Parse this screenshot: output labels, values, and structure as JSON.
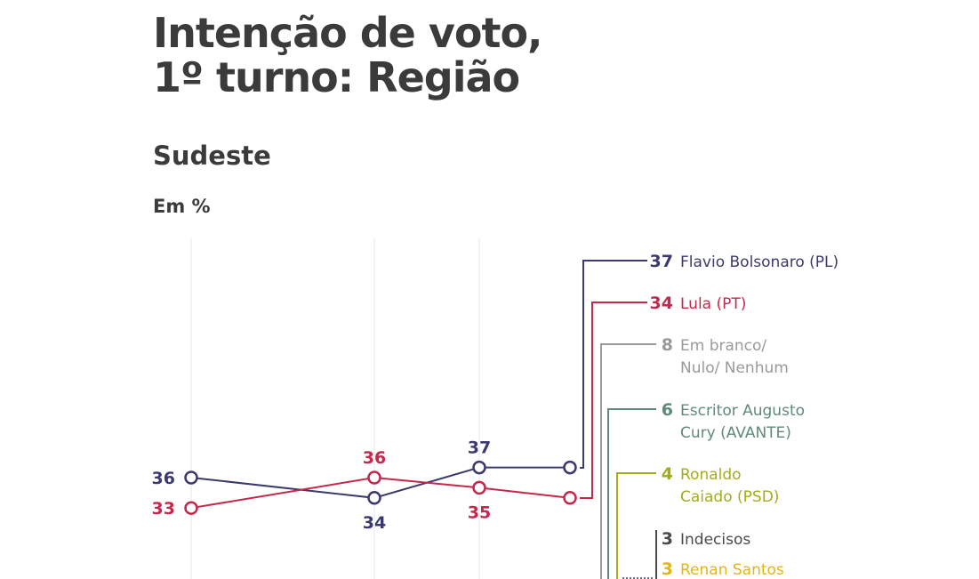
{
  "title_line1": "Intenção de voto,",
  "title_line2": "1º turno: Região",
  "subtitle": "Sudeste",
  "unit": "Em %",
  "chart_data": {
    "type": "line",
    "title": "Intenção de voto, 1º turno: Região",
    "subtitle": "Sudeste",
    "ylabel": "Em %",
    "grid": true,
    "series": [
      {
        "name": "Flavio Bolsonaro (PL)",
        "color": "#3b3a6e",
        "values": [
          36,
          34,
          37,
          37
        ],
        "labels": [
          "36",
          "34",
          "37",
          null
        ]
      },
      {
        "name": "Lula (PT)",
        "color": "#c4284a",
        "values": [
          33,
          36,
          35,
          34
        ],
        "labels": [
          "33",
          "36",
          "35",
          null
        ]
      }
    ],
    "latest": [
      {
        "value": "37",
        "line1": "Flavio Bolsonaro (PL)",
        "line2": "",
        "color": "#3b3a6e"
      },
      {
        "value": "34",
        "line1": "Lula (PT)",
        "line2": "",
        "color": "#c4284a"
      },
      {
        "value": "8",
        "line1": "Em branco/",
        "line2": "Nulo/ Nenhum",
        "color": "#9a9a9a"
      },
      {
        "value": "6",
        "line1": "Escritor Augusto",
        "line2": "Cury (AVANTE)",
        "color": "#5f8a78"
      },
      {
        "value": "4",
        "line1": "Ronaldo",
        "line2": "Caiado (PSD)",
        "color": "#a3ad1c"
      },
      {
        "value": "3",
        "line1": "Indecisos",
        "line2": "",
        "color": "#4a4a4a"
      },
      {
        "value": "3",
        "line1": "Renan Santos",
        "line2": "",
        "color": "#e3b516"
      }
    ]
  }
}
